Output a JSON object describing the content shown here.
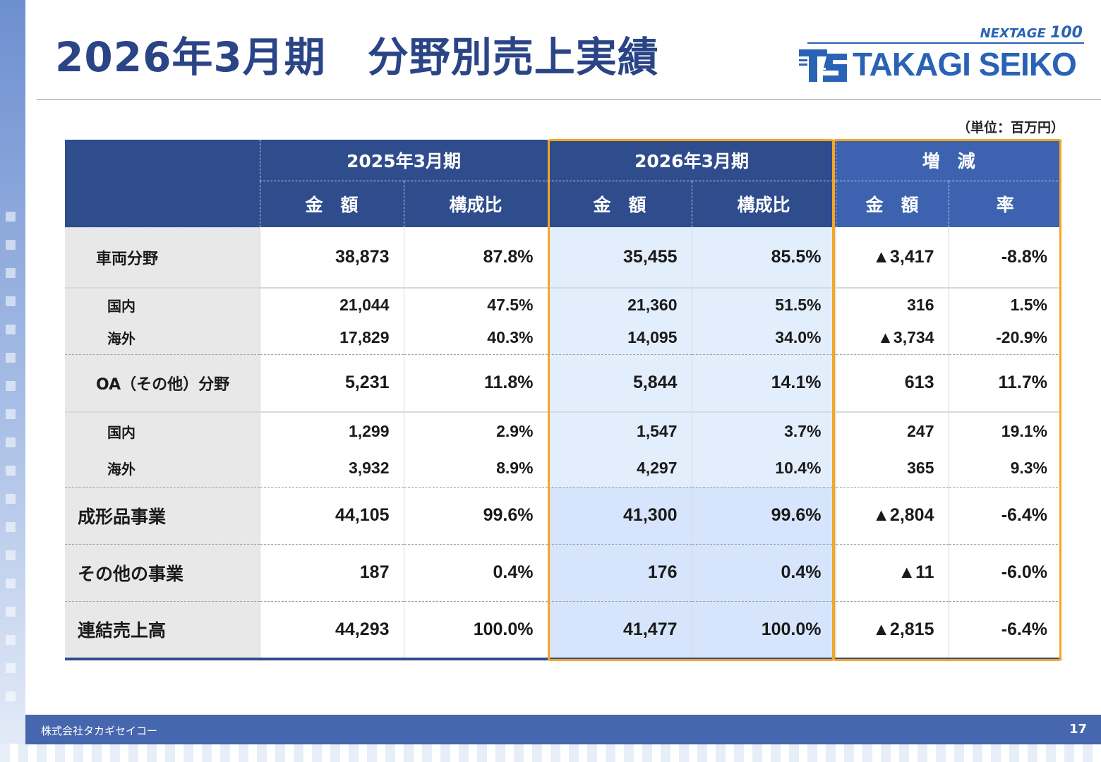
{
  "slide": {
    "title": "2026年3月期　分野別売上実績",
    "unit": "（単位：百万円）",
    "logo": {
      "tagline": "NEXTAGE ",
      "tagline_number": "100",
      "brand": "TAKAGI SEIKO"
    },
    "footer": {
      "company": "株式会社タカギセイコー",
      "page": "17"
    }
  },
  "table": {
    "periods": [
      "2025年3月期",
      "2026年3月期",
      "増　減"
    ],
    "subheaders": [
      "金　額",
      "構成比",
      "金　額",
      "構成比",
      "金　額",
      "率"
    ],
    "rows": [
      {
        "label": "車両分野",
        "values": [
          "38,873",
          "87.8%",
          "35,455",
          "85.5%",
          "▲3,417",
          "-8.8%"
        ]
      },
      {
        "label": "国内",
        "values": [
          "21,044",
          "47.5%",
          "21,360",
          "51.5%",
          "316",
          "1.5%"
        ]
      },
      {
        "label": "海外",
        "values": [
          "17,829",
          "40.3%",
          "14,095",
          "34.0%",
          "▲3,734",
          "-20.9%"
        ]
      },
      {
        "label": "OA（その他）分野",
        "values": [
          "5,231",
          "11.8%",
          "5,844",
          "14.1%",
          "613",
          "11.7%"
        ]
      },
      {
        "label": "国内",
        "values": [
          "1,299",
          "2.9%",
          "1,547",
          "3.7%",
          "247",
          "19.1%"
        ]
      },
      {
        "label": "海外",
        "values": [
          "3,932",
          "8.9%",
          "4,297",
          "10.4%",
          "365",
          "9.3%"
        ]
      },
      {
        "label": "成形品事業",
        "values": [
          "44,105",
          "99.6%",
          "41,300",
          "99.6%",
          "▲2,804",
          "-6.4%"
        ]
      },
      {
        "label": "その他の事業",
        "values": [
          "187",
          "0.4%",
          "176",
          "0.4%",
          "▲11",
          "-6.0%"
        ]
      },
      {
        "label": "連結売上高",
        "values": [
          "44,293",
          "100.0%",
          "41,477",
          "100.0%",
          "▲2,815",
          "-6.4%"
        ]
      }
    ]
  },
  "colors": {
    "title": "#2a4486",
    "header": "#2f4c8c",
    "header_delta": "#3d63b0",
    "highlight_border": "#f5a623",
    "current_period_fill": "#e3eefc",
    "footer": "#4666ad"
  }
}
